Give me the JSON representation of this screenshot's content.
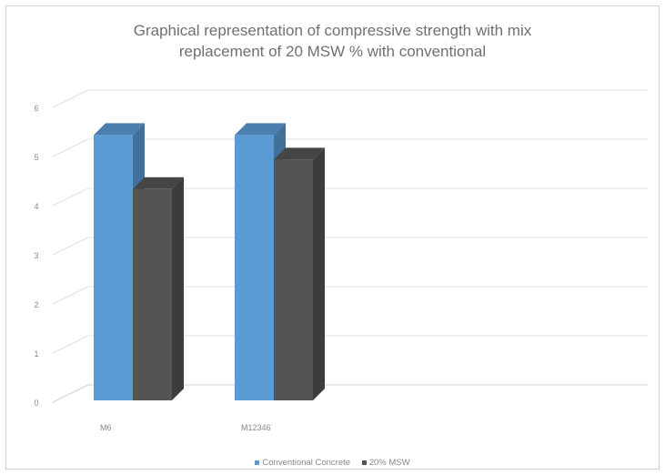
{
  "chart_data": {
    "type": "bar",
    "title": "Graphical representation of compressive strength with mix replacement of 20 MSW % with conventional",
    "title_lines": [
      "Graphical representation of compressive strength with mix",
      "replacement of 20 MSW % with conventional"
    ],
    "categories": [
      "M6",
      "M12346"
    ],
    "series": [
      {
        "name": "Conventional Concrete",
        "values": [
          5.4,
          5.4
        ],
        "color": "#5b9bd5"
      },
      {
        "name": "20% MSW",
        "values": [
          4.3,
          4.9
        ],
        "color": "#545454"
      }
    ],
    "yticks": [
      "0",
      "1",
      "2",
      "3",
      "4",
      "5",
      "6"
    ],
    "ylim": [
      0,
      6
    ],
    "xlabel": "",
    "ylabel": "",
    "grid": true,
    "legend_position": "bottom",
    "style": "3d-column"
  }
}
